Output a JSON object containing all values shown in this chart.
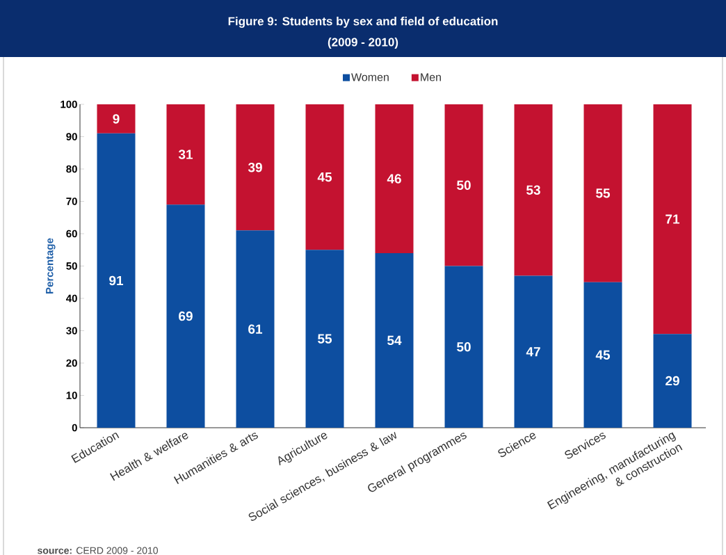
{
  "chart_data": {
    "type": "bar",
    "stacked": true,
    "title": "Figure 9: Students by sex and field of education",
    "subtitle": "(2009 - 2010)",
    "ylabel": "Percentage",
    "categories": [
      "Education",
      "Health & welfare",
      "Humanities & arts",
      "Agriculture",
      "Social sciences, business & law",
      "General programmes",
      "Science",
      "Services",
      "Engineering, manufacturing & construction"
    ],
    "series": [
      {
        "name": "Women",
        "color": "#0d4ea0",
        "values": [
          91,
          69,
          61,
          55,
          54,
          50,
          47,
          45,
          29
        ],
        "value_labels": [
          "91",
          "69",
          "61",
          "55",
          "54",
          "50",
          "47",
          "45",
          "29"
        ]
      },
      {
        "name": "Men",
        "color": "#c41230",
        "values": [
          9,
          31,
          39,
          45,
          46,
          50,
          53,
          55,
          71
        ],
        "value_labels": [
          "9",
          "31",
          "39",
          "45",
          "46",
          "50",
          "53",
          "55",
          "71"
        ]
      }
    ],
    "ylim": [
      0,
      100
    ],
    "yticks": [
      0,
      10,
      20,
      30,
      40,
      50,
      60,
      70,
      80,
      90,
      100
    ],
    "legend": "top",
    "grid": false,
    "annotations": [
      "**source:** CERD 2009 - 2010"
    ]
  }
}
